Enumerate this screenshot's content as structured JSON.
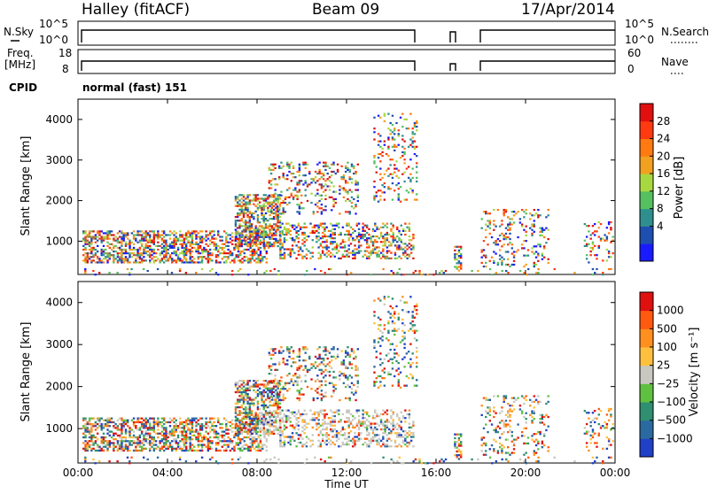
{
  "header": {
    "station": "Halley (fitACF)",
    "beam": "Beam 09",
    "date": "17/Apr/2014"
  },
  "chart_data": [
    {
      "type": "line",
      "panel": "noise",
      "left_label": "N.Sky",
      "right_label": "N.Search",
      "left_ticks": [
        "10^5",
        "10^0"
      ],
      "right_ticks": [
        "10^5",
        "10^0"
      ],
      "note": "nearly constant near top of axis; data gaps ~15:10–16:50 and ~17:10–18:00"
    },
    {
      "type": "scatter",
      "panel": "frequency",
      "left_label_line1": "Freq.",
      "left_label_line2": "[MHz]",
      "right_label": "Nave",
      "left_ticks": [
        "18",
        "8"
      ],
      "right_ticks": [
        "60",
        "0"
      ],
      "left_ylim": [
        8,
        18
      ],
      "right_ylim": [
        0,
        60
      ]
    },
    {
      "type": "table",
      "panel": "cpid",
      "label": "CPID",
      "value": "normal (fast) 151"
    },
    {
      "type": "heatmap",
      "panel": "power",
      "ylabel": "Slant Range [km]",
      "y_ticks": [
        "4000",
        "3000",
        "2000",
        "1000"
      ],
      "y_tick_values": [
        4000,
        3000,
        2000,
        1000
      ],
      "ylim": [
        180,
        4500
      ],
      "xlim_hours": [
        0,
        24
      ],
      "colorbar_label": "Power [dB]",
      "colorbar_ticks": [
        "28",
        "24",
        "20",
        "16",
        "12",
        "8",
        "4"
      ],
      "colorbar_colors": [
        "#1a1aff",
        "#1e4fb0",
        "#2f8f8f",
        "#55c060",
        "#a8d840",
        "#f2a020",
        "#ff7a10",
        "#ff3a10",
        "#e01010"
      ]
    },
    {
      "type": "heatmap",
      "panel": "velocity",
      "ylabel": "Slant Range [km]",
      "y_ticks": [
        "4000",
        "3000",
        "2000",
        "1000"
      ],
      "y_tick_values": [
        4000,
        3000,
        2000,
        1000
      ],
      "ylim": [
        180,
        4500
      ],
      "xlim_hours": [
        0,
        24
      ],
      "colorbar_label": "Velocity [m s⁻¹]",
      "colorbar_ticks": [
        "1000",
        "500",
        "100",
        "25",
        "−25",
        "−100",
        "−500",
        "−1000"
      ],
      "colorbar_colors": [
        "#2040c8",
        "#2a6aa0",
        "#2f8f70",
        "#60c040",
        "#c8c8c0",
        "#ffc040",
        "#ff9020",
        "#ff5a10",
        "#e01010"
      ]
    }
  ],
  "xaxis": {
    "ticks": [
      "00:00",
      "04:00",
      "08:00",
      "12:00",
      "16:00",
      "20:00",
      "00:00"
    ],
    "tick_hours": [
      0,
      4,
      8,
      12,
      16,
      20,
      24
    ],
    "label": "Time UT"
  }
}
